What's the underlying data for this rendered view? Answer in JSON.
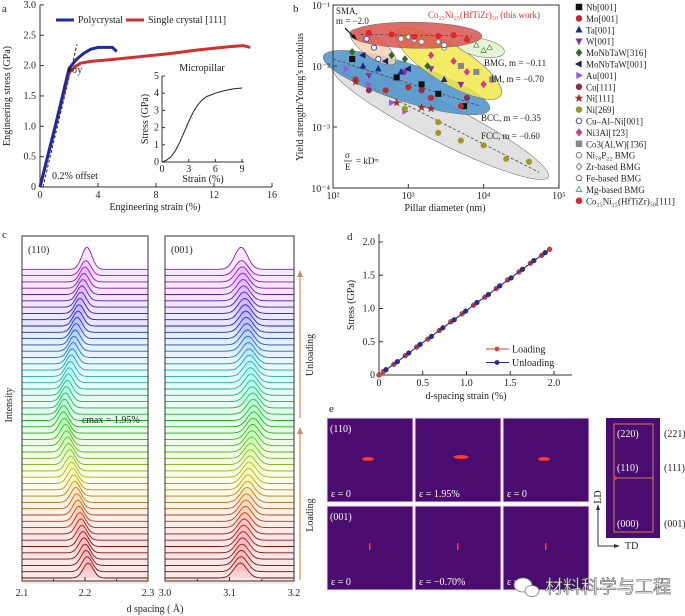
{
  "panel_labels": [
    "a",
    "b",
    "c",
    "d",
    "e"
  ],
  "chart_data": [
    {
      "id": "a",
      "type": "line",
      "title": "",
      "xlabel": "Engineering strain (%)",
      "ylabel": "Engineering stress (GPa)",
      "xlim": [
        0,
        16
      ],
      "ylim": [
        0,
        3
      ],
      "xticks": [
        "0",
        "4",
        "8",
        "12",
        "16"
      ],
      "yticks": [
        "0",
        "0.5",
        "1.0",
        "1.5",
        "2.0",
        "2.5",
        "3.0"
      ],
      "legend_position": "top",
      "series": [
        {
          "name": "Polycrystal",
          "color": "#1f2a9c",
          "x": [
            0,
            1.0,
            2.0,
            2.5,
            3.0,
            3.5,
            4.0,
            4.5,
            5.0,
            5.3
          ],
          "y": [
            0,
            0.95,
            1.95,
            2.1,
            2.2,
            2.27,
            2.3,
            2.3,
            2.3,
            2.23
          ]
        },
        {
          "name": "Single crystal [111]",
          "color": "#d0302f",
          "x": [
            0,
            1.0,
            2.0,
            2.4,
            2.8,
            3.5,
            5,
            7,
            9,
            11,
            13,
            14,
            14.5
          ],
          "y": [
            0,
            0.95,
            1.88,
            1.98,
            2.04,
            2.07,
            2.1,
            2.15,
            2.2,
            2.26,
            2.31,
            2.33,
            2.3
          ]
        }
      ],
      "offset_line": {
        "label": "0.2% offset",
        "x": [
          0.2,
          2.55
        ],
        "y": [
          0,
          2.35
        ]
      },
      "yield_label": "σy",
      "inset": {
        "title": "Micropillar",
        "xlabel": "Strain (%)",
        "ylabel": "Stress (GPa)",
        "xlim": [
          0,
          9
        ],
        "ylim": [
          0,
          5
        ],
        "xticks": [
          "0",
          "3",
          "6",
          "9"
        ],
        "yticks": [
          "0",
          "1",
          "2",
          "3",
          "4",
          "5"
        ],
        "x": [
          0,
          0.5,
          1,
          1.5,
          2,
          2.5,
          3,
          3.5,
          4,
          4.5,
          5,
          6,
          7,
          8,
          9
        ],
        "y": [
          0,
          0.1,
          0.3,
          0.65,
          1.15,
          1.75,
          2.35,
          2.9,
          3.3,
          3.6,
          3.8,
          4.0,
          4.15,
          4.25,
          4.3
        ]
      }
    },
    {
      "id": "b",
      "type": "scatter",
      "xlabel": "Pillar diameter (nm)",
      "ylabel": "Yield strength/Young's modulus",
      "xscale": "log",
      "yscale": "log",
      "xlim": [
        100,
        100000
      ],
      "ylim": [
        0.0001,
        0.1
      ],
      "xtick_labels": [
        "10²",
        "10³",
        "10⁴",
        "10⁵"
      ],
      "ytick_labels": [
        "10⁻¹",
        "10⁻²",
        "10⁻³",
        "10⁻⁴"
      ],
      "legend_position": "right",
      "annotations": {
        "sma_1": "SMA,",
        "sma_2": "m = −2.0",
        "this_work": "Co₂₅Ni₂₅(HfTiZr)₅₀ (this work)",
        "bmg": "BMG, m = −0.11",
        "im": "IM, m = −0.70",
        "bcc": "BCC, m = −0.35",
        "fcc": "FCC, m = −0.60",
        "eq_sigma": "σ",
        "eq_E": "E",
        "eq_rhs": "= kDᵐ"
      },
      "regions": [
        {
          "name": "FCC",
          "from": [
            130,
            0.008
          ],
          "to": [
            55000,
            0.00018
          ],
          "color": "#dcdcdc"
        },
        {
          "name": "BCC",
          "from": [
            100,
            0.013
          ],
          "to": [
            9000,
            0.0022
          ],
          "color": "#4a90c8"
        },
        {
          "name": "IM",
          "from": [
            900,
            0.03
          ],
          "to": [
            13000,
            0.004
          ],
          "color": "#f2e84b"
        },
        {
          "name": "Mg-based BMG",
          "from": [
            6000,
            0.022
          ],
          "to": [
            14000,
            0.018
          ],
          "color": "#e4f1cc"
        },
        {
          "name": "SMA",
          "from": [
            220,
            0.03
          ],
          "to": [
            520,
            0.014
          ],
          "color": "#f6d2b4"
        },
        {
          "name": "This work",
          "from": [
            230,
            0.033
          ],
          "to": [
            7000,
            0.031
          ],
          "color": "#d9534f"
        }
      ],
      "series": [
        {
          "name": "Nb[001]",
          "shape": "square",
          "color": "#111111",
          "filled": true,
          "points": [
            [
              180,
              0.013
            ],
            [
              700,
              0.0065
            ],
            [
              1500,
              0.005
            ],
            [
              2500,
              0.0035
            ],
            [
              5500,
              0.0022
            ]
          ]
        },
        {
          "name": "Mo[001]",
          "shape": "circle",
          "color": "#c0282d",
          "filled": true,
          "points": [
            [
              200,
              0.006
            ],
            [
              500,
              0.004
            ],
            [
              1000,
              0.0045
            ],
            [
              2000,
              0.003
            ],
            [
              5000,
              0.0022
            ]
          ]
        },
        {
          "name": "Ta[001]",
          "shape": "tri-up",
          "color": "#1f2a8c",
          "filled": true,
          "points": [
            [
              250,
              0.01
            ],
            [
              400,
              0.009
            ],
            [
              800,
              0.008
            ],
            [
              3000,
              0.006
            ]
          ]
        },
        {
          "name": "W[001]",
          "shape": "tri-down",
          "color": "#8b2f9d",
          "filled": true,
          "points": [
            [
              300,
              0.007
            ],
            [
              900,
              0.008
            ],
            [
              2000,
              0.009
            ],
            [
              5000,
              0.005
            ]
          ]
        },
        {
          "name": "MoNbTaW[316]",
          "shape": "diamond",
          "color": "#2e6b2e",
          "filled": true,
          "points": [
            [
              180,
              0.017
            ],
            [
              600,
              0.015
            ],
            [
              900,
              0.013
            ],
            [
              1800,
              0.01
            ]
          ]
        },
        {
          "name": "MoNbTaW[001]",
          "shape": "tri-left",
          "color": "#15205e",
          "filled": true,
          "points": [
            [
              250,
              0.015
            ],
            [
              500,
              0.012
            ],
            [
              1000,
              0.009
            ]
          ]
        },
        {
          "name": "Au[001]",
          "shape": "tri-right",
          "color": "#9b59d0",
          "filled": true,
          "points": [
            [
              150,
              0.009
            ],
            [
              300,
              0.005
            ],
            [
              600,
              0.0025
            ],
            [
              900,
              0.0018
            ]
          ]
        },
        {
          "name": "Cu[111]",
          "shape": "circle",
          "color": "#8a2e5a",
          "filled": true,
          "points": [
            [
              300,
              0.004
            ],
            [
              1500,
              0.004
            ],
            [
              6000,
              0.003
            ]
          ]
        },
        {
          "name": "Ni[111]",
          "shape": "star",
          "color": "#a02a2a",
          "filled": true,
          "points": [
            [
              200,
              0.0055
            ],
            [
              700,
              0.0025
            ],
            [
              1500,
              0.0021
            ],
            [
              2000,
              0.002
            ]
          ]
        },
        {
          "name": "Ni[269]",
          "shape": "circle",
          "color": "#9a9a2a",
          "filled": true,
          "points": [
            [
              900,
              0.002
            ],
            [
              2500,
              0.0012
            ],
            [
              2500,
              0.0008
            ],
            [
              5000,
              0.0006
            ],
            [
              10000,
              0.0005
            ],
            [
              20000,
              0.0003
            ],
            [
              40000,
              0.00027
            ]
          ]
        },
        {
          "name": "Cu–Al–Ni[001]",
          "shape": "circle",
          "color": "#3a3aa8",
          "filled": false,
          "points": [
            [
              280,
              0.028
            ],
            [
              350,
              0.02
            ],
            [
              400,
              0.013
            ]
          ]
        },
        {
          "name": "Ni3Al[1̄23]",
          "shape": "diamond",
          "color": "#d23c8c",
          "filled": true,
          "points": [
            [
              2000,
              0.015
            ],
            [
              4000,
              0.012
            ],
            [
              6000,
              0.008
            ],
            [
              10000,
              0.005
            ]
          ]
        },
        {
          "name": "Co3(Al,W)[1̄36]",
          "shape": "square",
          "color": "#888888",
          "filled": true,
          "points": [
            [
              5000,
              0.01
            ],
            [
              8000,
              0.008
            ],
            [
              13000,
              0.006
            ]
          ]
        },
        {
          "name": "Ni₇₈P₂₂ BMG",
          "shape": "circle",
          "color": "#777777",
          "filled": false,
          "points": [
            [
              800,
              0.028
            ],
            [
              1500,
              0.025
            ],
            [
              3000,
              0.02
            ]
          ]
        },
        {
          "name": "Zr-based BMG",
          "shape": "diamond",
          "color": "#777777",
          "filled": false,
          "points": [
            [
              1000,
              0.03
            ],
            [
              2500,
              0.025
            ]
          ]
        },
        {
          "name": "Fe-based BMG",
          "shape": "pentagon",
          "color": "#777777",
          "filled": false,
          "points": [
            [
              1200,
              0.027
            ],
            [
              3000,
              0.022
            ]
          ]
        },
        {
          "name": "Mg-based BMG",
          "shape": "tri-up",
          "color": "#5aa05a",
          "filled": false,
          "points": [
            [
              8000,
              0.022
            ],
            [
              10000,
              0.018
            ],
            [
              12000,
              0.02
            ]
          ]
        },
        {
          "name": "Co₂₅Ni₂₅(HfTiZr)₅₀[111]",
          "shape": "circle",
          "color": "#e0262b",
          "filled": true,
          "points": [
            [
              300,
              0.035
            ],
            [
              600,
              0.033
            ],
            [
              1200,
              0.03
            ],
            [
              2500,
              0.031
            ],
            [
              4000,
              0.032
            ],
            [
              6000,
              0.027
            ]
          ]
        }
      ]
    },
    {
      "id": "c",
      "type": "line",
      "xlabel": "d spacing ( Å)",
      "ylabel": "Intensity",
      "max_strain_label": "εmax = 1.95%",
      "loading_label": "Loading",
      "unloading_label": "Unloading",
      "n_curves": 50,
      "subplots": [
        {
          "title": "(110)",
          "xlim": [
            2.1,
            2.3
          ],
          "xtick_labels": [
            "2.1",
            "2.2",
            "2.3"
          ],
          "peak_start": 2.205,
          "peak_at_max_strain": 2.165,
          "peak_end": 2.203,
          "peak_width": 0.008
        },
        {
          "title": "(001)",
          "xlim": [
            3.0,
            3.2
          ],
          "xtick_labels": [
            "3.0",
            "3.1",
            "3.2"
          ],
          "peak_start": 3.117,
          "peak_at_max_strain": 3.138,
          "peak_end": 3.118,
          "peak_width": 0.01
        }
      ]
    },
    {
      "id": "d",
      "type": "line",
      "xlabel": "d-spacing strain (%)",
      "ylabel": "Stress (GPa)",
      "xlim": [
        0,
        2.2
      ],
      "ylim": [
        0,
        2.0
      ],
      "xticks": [
        "0",
        "0.5",
        "1.0",
        "1.5",
        "2.0"
      ],
      "yticks": [
        "0",
        "0.5",
        "1.0",
        "1.5",
        "2.0"
      ],
      "legend_position": "bottom-right",
      "series": [
        {
          "name": "Loading",
          "color": "#e0403a",
          "x": [
            0,
            0.05,
            0.17,
            0.3,
            0.43,
            0.56,
            0.69,
            0.82,
            0.95,
            1.08,
            1.21,
            1.34,
            1.47,
            1.6,
            1.73,
            1.86,
            1.95
          ],
          "y": [
            0,
            0.05,
            0.16,
            0.29,
            0.42,
            0.54,
            0.67,
            0.8,
            0.92,
            1.05,
            1.17,
            1.3,
            1.43,
            1.55,
            1.68,
            1.8,
            1.89
          ]
        },
        {
          "name": "Unloading",
          "color": "#2b2a9a",
          "x": [
            1.9,
            1.77,
            1.64,
            1.51,
            1.38,
            1.25,
            1.12,
            0.99,
            0.86,
            0.73,
            0.6,
            0.47,
            0.34,
            0.21,
            0.08
          ],
          "y": [
            1.84,
            1.72,
            1.59,
            1.46,
            1.34,
            1.21,
            1.09,
            0.96,
            0.83,
            0.71,
            0.58,
            0.46,
            0.33,
            0.2,
            0.08
          ]
        }
      ]
    }
  ],
  "panel_e": {
    "tiles": [
      {
        "plane": "(110)",
        "strain": "ε = 0",
        "spot": "horizontal"
      },
      {
        "plane": "",
        "strain": "ε = 1.95%",
        "spot": "horizontal-large"
      },
      {
        "plane": "",
        "strain": "ε = 0",
        "spot": "horizontal"
      },
      {
        "plane": "(001)",
        "strain": "ε = 0",
        "spot": "vertical"
      },
      {
        "plane": "",
        "strain": "ε = −0.70%",
        "spot": "vertical"
      },
      {
        "plane": "",
        "strain": "ε = 0",
        "spot": "vertical"
      }
    ],
    "side_inner": [
      "(220)",
      "(110)",
      "(000)"
    ],
    "side_outer": [
      "(221)",
      "(111)",
      "(001)"
    ],
    "axis_ld": "LD",
    "axis_td": "TD",
    "tile_color": "#4a0c6e",
    "spot_color": "#ff3a2a"
  },
  "watermark": "材料科学与工程"
}
